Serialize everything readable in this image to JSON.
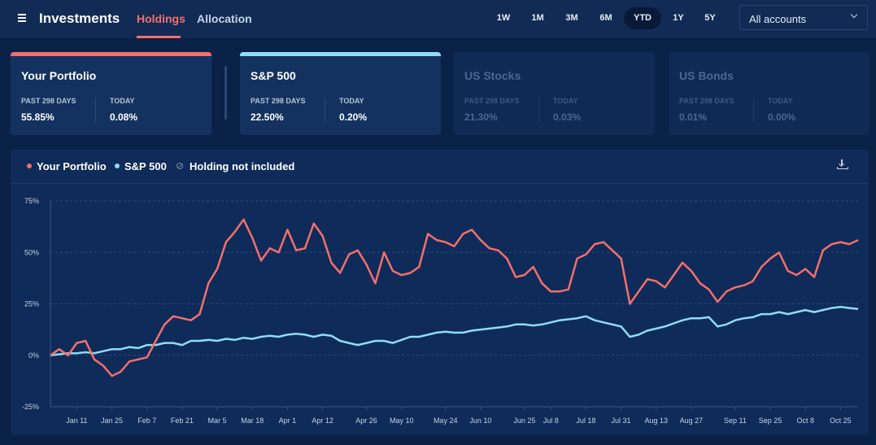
{
  "header": {
    "app_title": "Investments",
    "tabs": [
      "Holdings",
      "Allocation"
    ],
    "active_tab": 0,
    "ranges": [
      "1W",
      "1M",
      "3M",
      "6M",
      "YTD",
      "1Y",
      "5Y"
    ],
    "active_range": 4,
    "account_select": "All accounts"
  },
  "cards": [
    {
      "title": "Your Portfolio",
      "period_label": "PAST 298 DAYS",
      "period_value": "55.85%",
      "today_label": "TODAY",
      "today_value": "0.08%",
      "accent": "#f46f6b",
      "dimmed": false
    },
    {
      "title": "S&P 500",
      "period_label": "PAST 298 DAYS",
      "period_value": "22.50%",
      "today_label": "TODAY",
      "today_value": "0.20%",
      "accent": "#8fdcf2",
      "dimmed": false
    },
    {
      "title": "US Stocks",
      "period_label": "PAST 298 DAYS",
      "period_value": "21.30%",
      "today_label": "TODAY",
      "today_value": "0.03%",
      "dimmed": true
    },
    {
      "title": "US Bonds",
      "period_label": "PAST 298 DAYS",
      "period_value": "0.01%",
      "today_label": "TODAY",
      "today_value": "0.00%",
      "dimmed": true
    }
  ],
  "chart_data": {
    "type": "line",
    "legend_note": "Holding not included",
    "categories": [
      null,
      null,
      null,
      "Jan 11",
      null,
      null,
      null,
      "Jan 25",
      null,
      null,
      null,
      "Feb 7",
      null,
      null,
      null,
      "Feb 21",
      null,
      null,
      null,
      "Mar 5",
      null,
      null,
      null,
      "Mar 18",
      null,
      null,
      null,
      "Apr 1",
      null,
      null,
      null,
      "Apr 12",
      null,
      null,
      null,
      null,
      "Apr 26",
      null,
      null,
      null,
      "May 10",
      null,
      null,
      null,
      null,
      "May 24",
      null,
      null,
      null,
      "Jun 10",
      null,
      null,
      null,
      null,
      "Jun 25",
      null,
      null,
      "Jul 8",
      null,
      null,
      null,
      "Jul 18",
      null,
      null,
      null,
      "Jul 31",
      null,
      null,
      null,
      "Aug 13",
      null,
      null,
      null,
      "Aug 27",
      null,
      null,
      null,
      null,
      "Sep 11",
      null,
      null,
      null,
      "Sep 25",
      null,
      null,
      null,
      "Oct 8",
      null,
      null,
      null,
      "Oct 25",
      null,
      null
    ],
    "series": [
      {
        "name": "Your Portfolio",
        "color": "#f46f6b",
        "values": [
          0,
          3,
          0,
          6,
          7,
          -2,
          -5,
          -10,
          -8,
          -3,
          -2,
          -1,
          7,
          15,
          19,
          18,
          17,
          20,
          35,
          42,
          55,
          60,
          66,
          57,
          46,
          52,
          50,
          61,
          51,
          52,
          64,
          58,
          45,
          40,
          49,
          51,
          44,
          35,
          50,
          41,
          39,
          40,
          43,
          59,
          56,
          55,
          53,
          59,
          61,
          56,
          52,
          51,
          47,
          38,
          39,
          43,
          35,
          31,
          31,
          32,
          47,
          49,
          54,
          55,
          51,
          47,
          25,
          31,
          37,
          36,
          33,
          39,
          45,
          41,
          35,
          32,
          26,
          31,
          33,
          34,
          36,
          43,
          47,
          50,
          41,
          39,
          42,
          38,
          51,
          54,
          55,
          54,
          56
        ]
      },
      {
        "name": "S&P 500",
        "color": "#8fdcf2",
        "values": [
          0,
          0.5,
          1,
          1,
          1.5,
          1,
          2,
          3,
          3,
          4,
          3.5,
          5,
          5,
          6,
          6,
          5,
          7,
          7,
          7.5,
          7,
          8,
          7.5,
          8.5,
          8,
          9,
          9.5,
          9,
          10,
          10.5,
          10,
          9,
          10,
          9.5,
          7,
          6,
          5,
          6,
          7,
          7,
          6,
          7.5,
          9,
          9,
          10,
          11,
          11.5,
          11,
          11,
          12,
          12.5,
          13,
          13.5,
          14,
          15,
          15,
          14.5,
          15,
          16,
          17,
          17.5,
          18,
          19,
          17,
          16,
          15,
          14,
          9,
          10,
          12,
          13,
          14,
          15.5,
          17,
          18,
          18,
          18.5,
          14,
          15,
          17,
          18,
          18.5,
          20,
          20,
          21,
          20,
          21,
          22,
          21,
          22,
          23,
          23.5,
          23,
          22.5
        ]
      }
    ],
    "ylim": [
      -25,
      75
    ],
    "yticks": [
      {
        "value": -25,
        "label": "-25%"
      },
      {
        "value": 0,
        "label": "0%"
      },
      {
        "value": 25,
        "label": "25%"
      },
      {
        "value": 50,
        "label": "50%"
      },
      {
        "value": 75,
        "label": "75%"
      }
    ],
    "grid": true
  }
}
